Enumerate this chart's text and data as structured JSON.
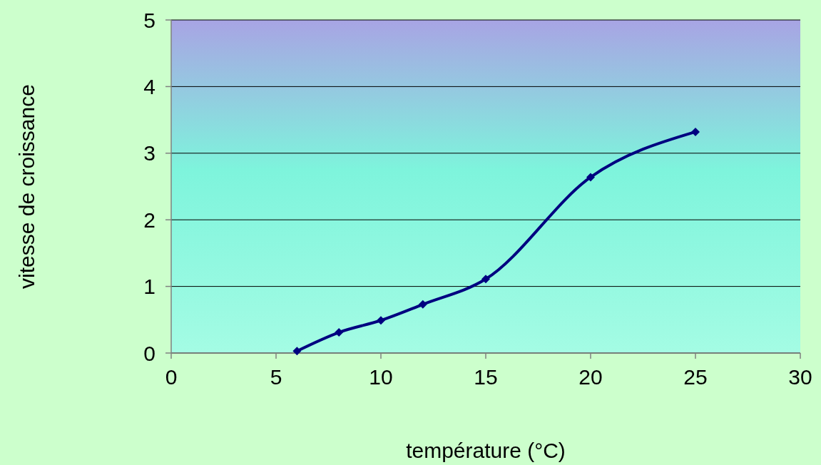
{
  "chart_data": {
    "type": "line",
    "xlabel": "température (°C)",
    "ylabel": "vitesse de croissance",
    "x": [
      6,
      8,
      10,
      12,
      15,
      20,
      25
    ],
    "series": [
      {
        "color": "#000080",
        "values": [
          0.03,
          0.31,
          0.49,
          0.73,
          1.11,
          2.64,
          3.32
        ]
      }
    ],
    "xlim": [
      0,
      30
    ],
    "xticks": [
      0,
      5,
      10,
      15,
      20,
      25,
      30
    ],
    "ylim": [
      0,
      5
    ],
    "yticks": [
      0,
      1,
      2,
      3,
      4,
      5
    ],
    "grid": "y",
    "marker": "diamond",
    "line_style": "solid"
  }
}
